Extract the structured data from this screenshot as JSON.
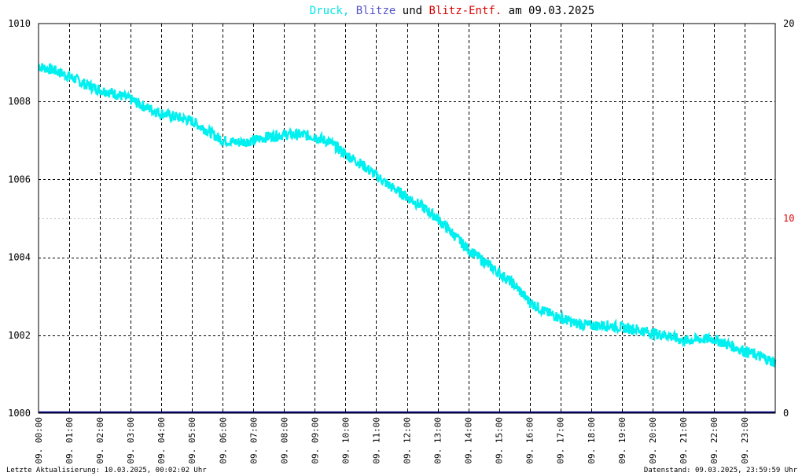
{
  "chart_data": {
    "type": "line",
    "title": {
      "parts": [
        {
          "text": "Druck",
          "color": "#00e5e5"
        },
        {
          "text": ",",
          "color": "#00e5e5"
        },
        {
          "text": " Blitze",
          "color": "#5555cc"
        },
        {
          "text": " und ",
          "color": "#000000"
        },
        {
          "text": "Blitz-Entf.",
          "color": "#dd0000"
        },
        {
          "text": " am 09.03.2025",
          "color": "#000000"
        }
      ]
    },
    "y_left": {
      "min": 1000,
      "max": 1010,
      "ticks": [
        "1000",
        "1002",
        "1004",
        "1006",
        "1008",
        "1010"
      ]
    },
    "y_right": {
      "min": 0,
      "max": 20,
      "ticks": [
        {
          "value": 0,
          "label": "0",
          "color": "#000000"
        },
        {
          "value": 10,
          "label": "10",
          "color": "#dd0000"
        },
        {
          "value": 20,
          "label": "20",
          "color": "#000000"
        }
      ]
    },
    "x_hours": {
      "min": 0,
      "max": 24
    },
    "x_ticks": [
      "09. 00:00",
      "09. 01:00",
      "09. 02:00",
      "09. 03:00",
      "09. 04:00",
      "09. 05:00",
      "09. 06:00",
      "09. 07:00",
      "09. 08:00",
      "09. 09:00",
      "09. 10:00",
      "09. 11:00",
      "09. 12:00",
      "09. 13:00",
      "09. 14:00",
      "09. 15:00",
      "09. 16:00",
      "09. 17:00",
      "09. 18:00",
      "09. 19:00",
      "09. 20:00",
      "09. 21:00",
      "09. 22:00",
      "09. 23:00"
    ],
    "series": [
      {
        "color": "#00f0f0",
        "hours": [
          0,
          0.5,
          1,
          1.5,
          2,
          2.5,
          3,
          3.5,
          4,
          4.5,
          5,
          5.5,
          6,
          6.5,
          7,
          7.5,
          8,
          8.5,
          9,
          9.5,
          10,
          10.5,
          11,
          11.5,
          12,
          12.5,
          13,
          13.5,
          14,
          14.5,
          15,
          15.5,
          16,
          16.5,
          17,
          17.5,
          18,
          18.5,
          19,
          19.5,
          20,
          20.5,
          21,
          21.5,
          22,
          22.5,
          23,
          23.5,
          24
        ],
        "values": [
          1008.9,
          1008.8,
          1008.65,
          1008.45,
          1008.3,
          1008.2,
          1008.05,
          1007.85,
          1007.7,
          1007.6,
          1007.5,
          1007.25,
          1007.0,
          1006.95,
          1007.0,
          1007.1,
          1007.15,
          1007.15,
          1007.1,
          1006.95,
          1006.65,
          1006.4,
          1006.1,
          1005.8,
          1005.55,
          1005.3,
          1005.0,
          1004.6,
          1004.2,
          1003.9,
          1003.6,
          1003.3,
          1002.85,
          1002.6,
          1002.45,
          1002.3,
          1002.25,
          1002.25,
          1002.2,
          1002.15,
          1002.05,
          1002.0,
          1001.85,
          1001.9,
          1001.9,
          1001.75,
          1001.6,
          1001.45,
          1001.3
        ]
      },
      {
        "color": "#000080",
        "hours": [
          0,
          24
        ],
        "values": [
          1000,
          1000
        ]
      }
    ],
    "grid": true
  },
  "footer": {
    "left": "Letzte Aktualisierung: 10.03.2025, 00:02:02 Uhr",
    "right": "Datenstand: 09.03.2025, 23:59:59 Uhr"
  }
}
